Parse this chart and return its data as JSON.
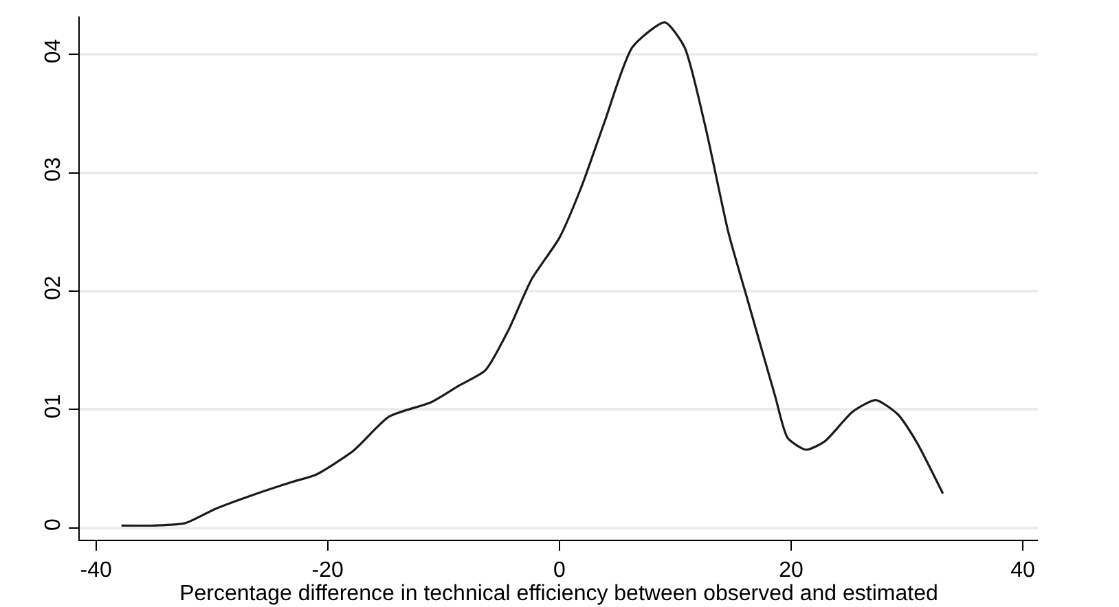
{
  "chart_data": {
    "type": "line",
    "xlabel": "Percentage difference in technical efficiency between observed and estimated",
    "xlim": [
      -41.4,
      41.3
    ],
    "xticks": [
      -40,
      -20,
      0,
      20,
      40
    ],
    "ylim": [
      -0.1,
      4.32
    ],
    "yticks": [
      0,
      {
        "value": 1,
        "label": "01"
      },
      {
        "value": 2,
        "label": "02"
      },
      {
        "value": 3,
        "label": "03"
      },
      {
        "value": 4,
        "label": "04"
      }
    ],
    "grid": "y",
    "line_style": "solid",
    "series": [
      {
        "color": "#1a1a1a",
        "x": [
          -37.8,
          -34.9,
          -32.3,
          -29.7,
          -26.1,
          -23.0,
          -21.0,
          -17.8,
          -14.7,
          -11.1,
          -8.7,
          -6.4,
          -4.4,
          -2.4,
          0.0,
          1.9,
          3.9,
          6.3,
          9.1,
          10.8,
          12.6,
          14.6,
          16.2,
          18.6,
          19.7,
          21.3,
          22.9,
          25.3,
          27.3,
          29.2,
          30.8,
          33.1
        ],
        "values": [
          0.02,
          0.02,
          0.04,
          0.16,
          0.29,
          0.39,
          0.45,
          0.65,
          0.94,
          1.06,
          1.2,
          1.33,
          1.67,
          2.1,
          2.45,
          2.88,
          3.43,
          4.06,
          4.27,
          4.06,
          3.39,
          2.49,
          1.94,
          1.12,
          0.76,
          0.66,
          0.73,
          0.98,
          1.08,
          0.96,
          0.73,
          0.29
        ]
      }
    ]
  }
}
